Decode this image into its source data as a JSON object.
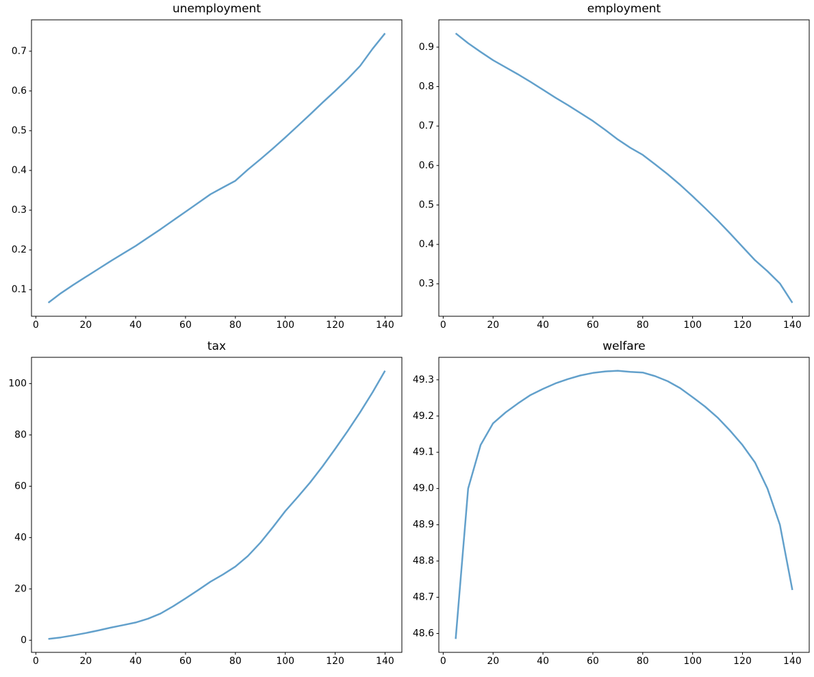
{
  "figure": {
    "background": "#ffffff",
    "line_color": "#62a0cb",
    "axis_color": "#000000",
    "text_color": "#000000"
  },
  "chart_data": [
    {
      "type": "line",
      "title": "unemployment",
      "xlabel": "",
      "ylabel": "",
      "grid": false,
      "legend": "none",
      "xlim": [
        -1.75,
        146.75
      ],
      "ylim": [
        0.0331,
        0.7789
      ],
      "x_ticks": [
        "0",
        "20",
        "40",
        "60",
        "80",
        "100",
        "120",
        "140"
      ],
      "y_ticks": [
        "0.1",
        "0.2",
        "0.3",
        "0.4",
        "0.5",
        "0.6",
        "0.7"
      ],
      "x": [
        5,
        10,
        15,
        20,
        25,
        30,
        35,
        40,
        45,
        50,
        55,
        60,
        65,
        70,
        75,
        80,
        85,
        90,
        95,
        100,
        105,
        110,
        115,
        120,
        125,
        130,
        135,
        140
      ],
      "y": [
        0.067,
        0.091,
        0.112,
        0.132,
        0.152,
        0.172,
        0.191,
        0.21,
        0.231,
        0.252,
        0.274,
        0.296,
        0.318,
        0.34,
        0.357,
        0.374,
        0.402,
        0.428,
        0.455,
        0.483,
        0.512,
        0.541,
        0.571,
        0.6,
        0.63,
        0.663,
        0.706,
        0.745
      ]
    },
    {
      "type": "line",
      "title": "employment",
      "xlabel": "",
      "ylabel": "",
      "grid": false,
      "legend": "none",
      "xlim": [
        -1.75,
        146.75
      ],
      "ylim": [
        0.2179,
        0.9692
      ],
      "x_ticks": [
        "0",
        "20",
        "40",
        "60",
        "80",
        "100",
        "120",
        "140"
      ],
      "y_ticks": [
        "0.3",
        "0.4",
        "0.5",
        "0.6",
        "0.7",
        "0.8",
        "0.9"
      ],
      "x": [
        5,
        10,
        15,
        20,
        25,
        30,
        35,
        40,
        45,
        50,
        55,
        60,
        65,
        70,
        75,
        80,
        85,
        90,
        95,
        100,
        105,
        110,
        115,
        120,
        125,
        130,
        135,
        140
      ],
      "y": [
        0.935,
        0.91,
        0.888,
        0.867,
        0.849,
        0.831,
        0.812,
        0.792,
        0.772,
        0.753,
        0.733,
        0.713,
        0.69,
        0.666,
        0.645,
        0.627,
        0.603,
        0.578,
        0.551,
        0.522,
        0.492,
        0.461,
        0.428,
        0.394,
        0.36,
        0.332,
        0.301,
        0.252
      ]
    },
    {
      "type": "line",
      "title": "tax",
      "xlabel": "",
      "ylabel": "",
      "grid": false,
      "legend": "none",
      "xlim": [
        -1.75,
        146.75
      ],
      "ylim": [
        -4.725,
        110.225
      ],
      "x_ticks": [
        "0",
        "20",
        "40",
        "60",
        "80",
        "100",
        "120",
        "140"
      ],
      "y_ticks": [
        "0",
        "20",
        "40",
        "60",
        "80",
        "100"
      ],
      "x": [
        5,
        10,
        15,
        20,
        25,
        30,
        35,
        40,
        45,
        50,
        55,
        60,
        65,
        70,
        75,
        80,
        85,
        90,
        95,
        100,
        105,
        110,
        115,
        120,
        125,
        130,
        135,
        140
      ],
      "y": [
        0.5,
        1.1,
        1.9,
        2.8,
        3.8,
        4.9,
        5.9,
        6.9,
        8.4,
        10.4,
        13.2,
        16.3,
        19.5,
        22.8,
        25.6,
        28.7,
        32.8,
        38.0,
        44.0,
        50.3,
        55.8,
        61.5,
        67.8,
        74.5,
        81.5,
        88.8,
        96.6,
        105.0
      ]
    },
    {
      "type": "line",
      "title": "welfare",
      "xlabel": "",
      "ylabel": "",
      "grid": false,
      "legend": "none",
      "xlim": [
        -1.75,
        146.75
      ],
      "ylim": [
        48.548,
        49.362
      ],
      "x_ticks": [
        "0",
        "20",
        "40",
        "60",
        "80",
        "100",
        "120",
        "140"
      ],
      "y_ticks": [
        "48.6",
        "48.7",
        "48.8",
        "48.9",
        "49.0",
        "49.1",
        "49.2",
        "49.3"
      ],
      "x": [
        5,
        10,
        15,
        20,
        25,
        30,
        35,
        40,
        45,
        50,
        55,
        60,
        65,
        70,
        75,
        80,
        85,
        90,
        95,
        100,
        105,
        110,
        115,
        120,
        125,
        130,
        135,
        140
      ],
      "y": [
        48.585,
        49.0,
        49.12,
        49.18,
        49.21,
        49.235,
        49.258,
        49.275,
        49.29,
        49.302,
        49.312,
        49.319,
        49.323,
        49.325,
        49.322,
        49.32,
        49.31,
        49.296,
        49.277,
        49.252,
        49.226,
        49.196,
        49.16,
        49.12,
        49.072,
        49.0,
        48.9,
        48.72
      ]
    }
  ]
}
